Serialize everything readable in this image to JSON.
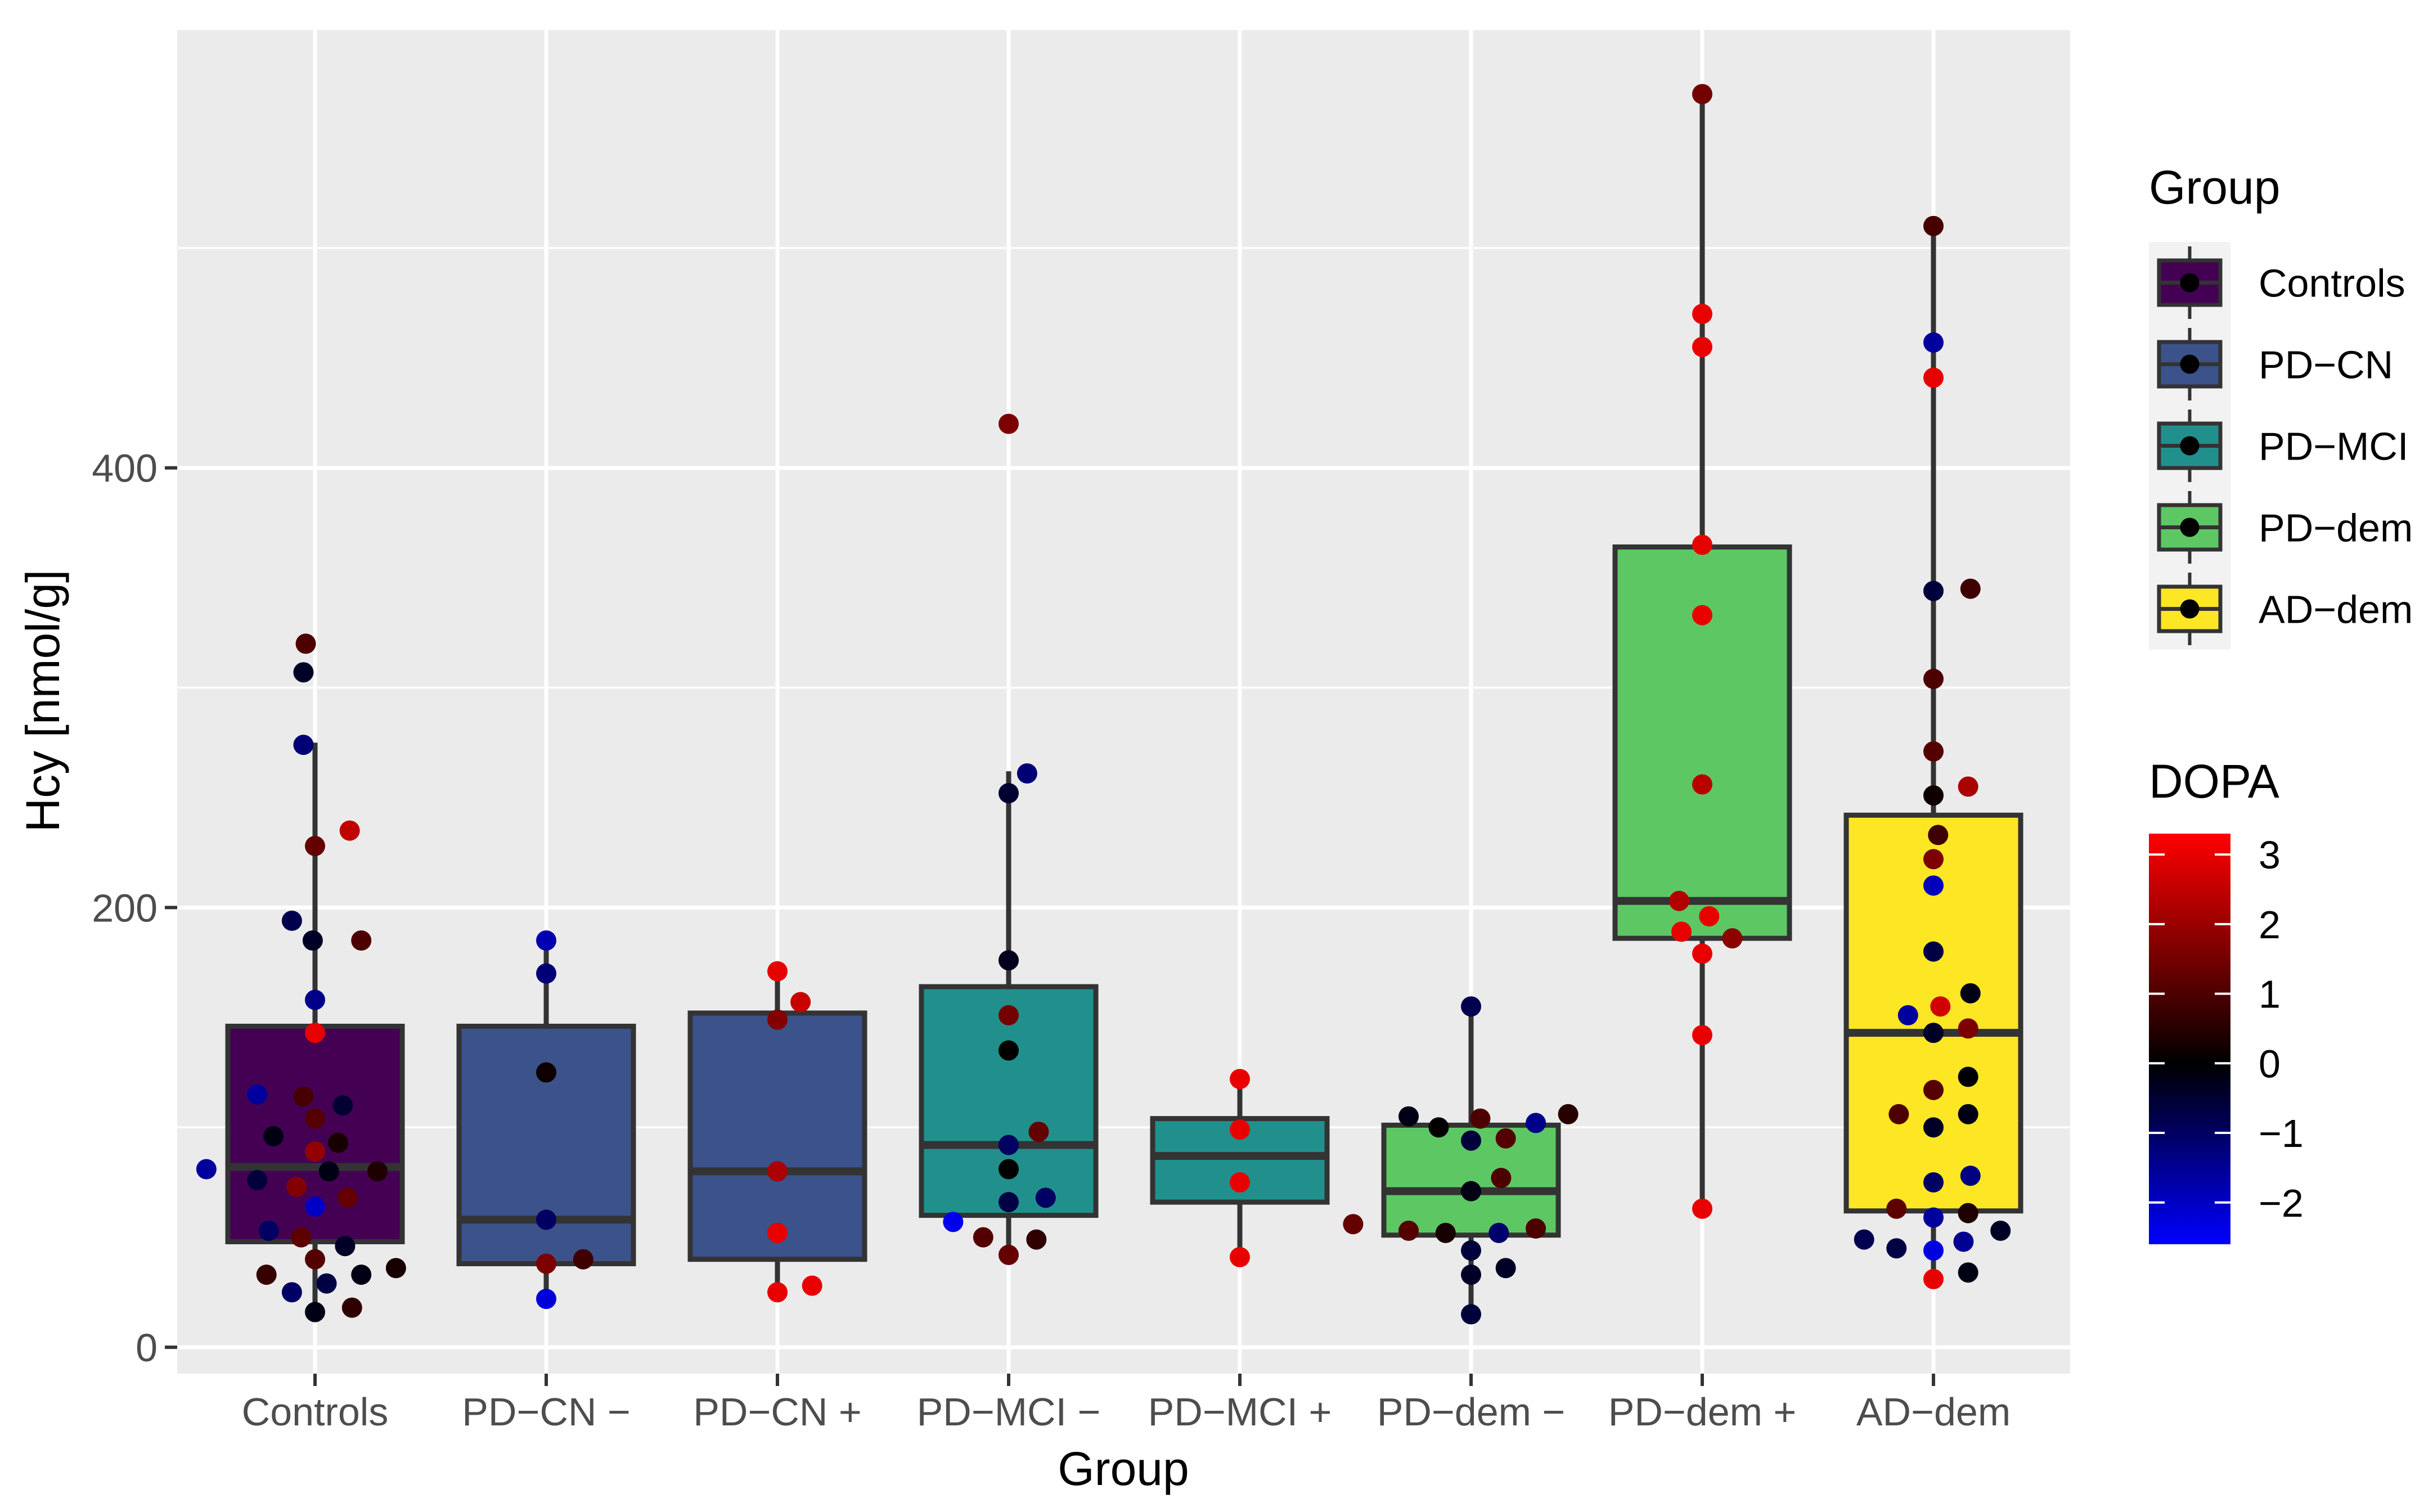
{
  "chart_data": {
    "type": "boxplot",
    "xlabel": "Group",
    "ylabel": "Hcy [nmol/g]",
    "ylim": [
      -12,
      600
    ],
    "yticks": [
      0,
      200,
      400
    ],
    "grid": true,
    "categories": [
      "Controls",
      "PD−CN −",
      "PD−CN +",
      "PD−MCI −",
      "PD−MCI +",
      "PD−dem −",
      "PD−dem +",
      "AD−dem"
    ],
    "boxes": [
      {
        "category": "Controls",
        "group": "Controls",
        "whisker_low": 15,
        "q1": 48,
        "median": 82,
        "q3": 146,
        "whisker_high": 275
      },
      {
        "category": "PD−CN −",
        "group": "PD−CN",
        "whisker_low": 22,
        "q1": 38,
        "median": 58,
        "q3": 146,
        "whisker_high": 185
      },
      {
        "category": "PD−CN +",
        "group": "PD−CN",
        "whisker_low": 24,
        "q1": 40,
        "median": 80,
        "q3": 152,
        "whisker_high": 170
      },
      {
        "category": "PD−MCI −",
        "group": "PD−MCI",
        "whisker_low": 42,
        "q1": 60,
        "median": 92,
        "q3": 164,
        "whisker_high": 262
      },
      {
        "category": "PD−MCI +",
        "group": "PD−MCI",
        "whisker_low": 40,
        "q1": 66,
        "median": 87,
        "q3": 104,
        "whisker_high": 122
      },
      {
        "category": "PD−dem −",
        "group": "PD−dem",
        "whisker_low": 14,
        "q1": 51,
        "median": 71,
        "q3": 101,
        "whisker_high": 155
      },
      {
        "category": "PD−dem +",
        "group": "PD−dem",
        "whisker_low": 62,
        "q1": 186,
        "median": 203,
        "q3": 364,
        "whisker_high": 570
      },
      {
        "category": "AD−dem",
        "group": "AD−dem",
        "whisker_low": 30,
        "q1": 62,
        "median": 143,
        "q3": 242,
        "whisker_high": 510
      }
    ],
    "points": [
      {
        "category": "Controls",
        "dx": -0.04,
        "hcy": 320,
        "dopa": 1.0
      },
      {
        "category": "Controls",
        "dx": -0.05,
        "hcy": 307,
        "dopa": -0.4
      },
      {
        "category": "Controls",
        "dx": -0.05,
        "hcy": 274,
        "dopa": -1.2
      },
      {
        "category": "Controls",
        "dx": 0.15,
        "hcy": 235,
        "dopa": 2.5
      },
      {
        "category": "Controls",
        "dx": 0.0,
        "hcy": 228,
        "dopa": 1.3
      },
      {
        "category": "Controls",
        "dx": -0.1,
        "hcy": 194,
        "dopa": -0.8
      },
      {
        "category": "Controls",
        "dx": -0.01,
        "hcy": 185,
        "dopa": -0.4
      },
      {
        "category": "Controls",
        "dx": 0.2,
        "hcy": 185,
        "dopa": 1.0
      },
      {
        "category": "Controls",
        "dx": 0.0,
        "hcy": 158,
        "dopa": -1.4
      },
      {
        "category": "Controls",
        "dx": 0.0,
        "hcy": 143,
        "dopa": 3.0
      },
      {
        "category": "Controls",
        "dx": -0.25,
        "hcy": 115,
        "dopa": -1.6
      },
      {
        "category": "Controls",
        "dx": -0.05,
        "hcy": 114,
        "dopa": 0.9
      },
      {
        "category": "Controls",
        "dx": 0.12,
        "hcy": 110,
        "dopa": -0.5
      },
      {
        "category": "Controls",
        "dx": 0.0,
        "hcy": 104,
        "dopa": 1.1
      },
      {
        "category": "Controls",
        "dx": -0.18,
        "hcy": 96,
        "dopa": -0.2
      },
      {
        "category": "Controls",
        "dx": 0.1,
        "hcy": 93,
        "dopa": 0.3
      },
      {
        "category": "Controls",
        "dx": 0.0,
        "hcy": 89,
        "dopa": 1.9
      },
      {
        "category": "Controls",
        "dx": -0.47,
        "hcy": 81,
        "dopa": -1.6
      },
      {
        "category": "Controls",
        "dx": 0.06,
        "hcy": 80,
        "dopa": -0.2
      },
      {
        "category": "Controls",
        "dx": 0.27,
        "hcy": 80,
        "dopa": 0.4
      },
      {
        "category": "Controls",
        "dx": -0.25,
        "hcy": 76,
        "dopa": -0.6
      },
      {
        "category": "Controls",
        "dx": -0.08,
        "hcy": 73,
        "dopa": 1.7
      },
      {
        "category": "Controls",
        "dx": 0.14,
        "hcy": 68,
        "dopa": 1.3
      },
      {
        "category": "Controls",
        "dx": 0.0,
        "hcy": 64,
        "dopa": -2.0
      },
      {
        "category": "Controls",
        "dx": -0.2,
        "hcy": 53,
        "dopa": -1.0
      },
      {
        "category": "Controls",
        "dx": -0.06,
        "hcy": 50,
        "dopa": 1.2
      },
      {
        "category": "Controls",
        "dx": 0.13,
        "hcy": 46,
        "dopa": -0.4
      },
      {
        "category": "Controls",
        "dx": 0.0,
        "hcy": 40,
        "dopa": 1.1
      },
      {
        "category": "Controls",
        "dx": 0.35,
        "hcy": 36,
        "dopa": 0.3
      },
      {
        "category": "Controls",
        "dx": -0.21,
        "hcy": 33,
        "dopa": 0.7
      },
      {
        "category": "Controls",
        "dx": 0.2,
        "hcy": 33,
        "dopa": -0.2
      },
      {
        "category": "Controls",
        "dx": 0.05,
        "hcy": 29,
        "dopa": -0.7
      },
      {
        "category": "Controls",
        "dx": -0.1,
        "hcy": 25,
        "dopa": -1.0
      },
      {
        "category": "Controls",
        "dx": 0.16,
        "hcy": 18,
        "dopa": 0.6
      },
      {
        "category": "Controls",
        "dx": 0.0,
        "hcy": 16,
        "dopa": -0.2
      },
      {
        "category": "PD−CN −",
        "dx": 0.0,
        "hcy": 185,
        "dopa": -1.8
      },
      {
        "category": "PD−CN −",
        "dx": 0.0,
        "hcy": 170,
        "dopa": -1.2
      },
      {
        "category": "PD−CN −",
        "dx": 0.0,
        "hcy": 125,
        "dopa": 0.2
      },
      {
        "category": "PD−CN −",
        "dx": 0.0,
        "hcy": 58,
        "dopa": -1.0
      },
      {
        "category": "PD−CN −",
        "dx": 0.0,
        "hcy": 38,
        "dopa": 1.6
      },
      {
        "category": "PD−CN −",
        "dx": 0.16,
        "hcy": 40,
        "dopa": 0.8
      },
      {
        "category": "PD−CN −",
        "dx": 0.0,
        "hcy": 22,
        "dopa": -2.2
      },
      {
        "category": "PD−CN +",
        "dx": 0.0,
        "hcy": 171,
        "dopa": 3.0
      },
      {
        "category": "PD−CN +",
        "dx": 0.1,
        "hcy": 157,
        "dopa": 2.6
      },
      {
        "category": "PD−CN +",
        "dx": 0.0,
        "hcy": 149,
        "dopa": 1.7
      },
      {
        "category": "PD−CN +",
        "dx": 0.0,
        "hcy": 80,
        "dopa": 2.2
      },
      {
        "category": "PD−CN +",
        "dx": 0.0,
        "hcy": 52,
        "dopa": 3.0
      },
      {
        "category": "PD−CN +",
        "dx": 0.15,
        "hcy": 28,
        "dopa": 3.0
      },
      {
        "category": "PD−CN +",
        "dx": 0.0,
        "hcy": 25,
        "dopa": 3.0
      },
      {
        "category": "PD−MCI −",
        "dx": 0.0,
        "hcy": 420,
        "dopa": 1.6
      },
      {
        "category": "PD−MCI −",
        "dx": 0.08,
        "hcy": 261,
        "dopa": -1.2
      },
      {
        "category": "PD−MCI −",
        "dx": 0.0,
        "hcy": 252,
        "dopa": -0.5
      },
      {
        "category": "PD−MCI −",
        "dx": 0.0,
        "hcy": 176,
        "dopa": -0.3
      },
      {
        "category": "PD−MCI −",
        "dx": 0.0,
        "hcy": 151,
        "dopa": 1.5
      },
      {
        "category": "PD−MCI −",
        "dx": 0.0,
        "hcy": 135,
        "dopa": 0.0
      },
      {
        "category": "PD−MCI −",
        "dx": 0.13,
        "hcy": 98,
        "dopa": 1.3
      },
      {
        "category": "PD−MCI −",
        "dx": 0.0,
        "hcy": 92,
        "dopa": -1.0
      },
      {
        "category": "PD−MCI −",
        "dx": 0.0,
        "hcy": 81,
        "dopa": 0.0
      },
      {
        "category": "PD−MCI −",
        "dx": 0.0,
        "hcy": 66,
        "dopa": -0.7
      },
      {
        "category": "PD−MCI −",
        "dx": 0.16,
        "hcy": 68,
        "dopa": -1.0
      },
      {
        "category": "PD−MCI −",
        "dx": -0.24,
        "hcy": 57,
        "dopa": -2.4
      },
      {
        "category": "PD−MCI −",
        "dx": -0.11,
        "hcy": 50,
        "dopa": 1.1
      },
      {
        "category": "PD−MCI −",
        "dx": 0.12,
        "hcy": 49,
        "dopa": 0.6
      },
      {
        "category": "PD−MCI −",
        "dx": 0.0,
        "hcy": 42,
        "dopa": 1.3
      },
      {
        "category": "PD−MCI +",
        "dx": 0.0,
        "hcy": 122,
        "dopa": 3.0
      },
      {
        "category": "PD−MCI +",
        "dx": 0.0,
        "hcy": 99,
        "dopa": 3.0
      },
      {
        "category": "PD−MCI +",
        "dx": 0.0,
        "hcy": 75,
        "dopa": 3.0
      },
      {
        "category": "PD−MCI +",
        "dx": 0.0,
        "hcy": 41,
        "dopa": 3.0
      },
      {
        "category": "PD−dem −",
        "dx": 0.0,
        "hcy": 155,
        "dopa": -0.8
      },
      {
        "category": "PD−dem −",
        "dx": 0.42,
        "hcy": 106,
        "dopa": 0.5
      },
      {
        "category": "PD−dem −",
        "dx": -0.27,
        "hcy": 105,
        "dopa": -0.2
      },
      {
        "category": "PD−dem −",
        "dx": 0.04,
        "hcy": 104,
        "dopa": 1.0
      },
      {
        "category": "PD−dem −",
        "dx": 0.28,
        "hcy": 102,
        "dopa": -1.4
      },
      {
        "category": "PD−dem −",
        "dx": -0.14,
        "hcy": 100,
        "dopa": 0.0
      },
      {
        "category": "PD−dem −",
        "dx": 0.15,
        "hcy": 95,
        "dopa": 1.1
      },
      {
        "category": "PD−dem −",
        "dx": 0.0,
        "hcy": 94,
        "dopa": -0.6
      },
      {
        "category": "PD−dem −",
        "dx": 0.13,
        "hcy": 77,
        "dopa": 1.0
      },
      {
        "category": "PD−dem −",
        "dx": 0.0,
        "hcy": 71,
        "dopa": -0.2
      },
      {
        "category": "PD−dem −",
        "dx": -0.51,
        "hcy": 56,
        "dopa": 1.3
      },
      {
        "category": "PD−dem −",
        "dx": -0.27,
        "hcy": 53,
        "dopa": 1.1
      },
      {
        "category": "PD−dem −",
        "dx": -0.11,
        "hcy": 52,
        "dopa": 0.3
      },
      {
        "category": "PD−dem −",
        "dx": 0.12,
        "hcy": 52,
        "dopa": -1.1
      },
      {
        "category": "PD−dem −",
        "dx": 0.28,
        "hcy": 54,
        "dopa": 1.0
      },
      {
        "category": "PD−dem −",
        "dx": 0.0,
        "hcy": 44,
        "dopa": -0.6
      },
      {
        "category": "PD−dem −",
        "dx": 0.15,
        "hcy": 36,
        "dopa": -0.4
      },
      {
        "category": "PD−dem −",
        "dx": 0.0,
        "hcy": 33,
        "dopa": -0.4
      },
      {
        "category": "PD−dem −",
        "dx": 0.0,
        "hcy": 15,
        "dopa": -0.6
      },
      {
        "category": "PD−dem +",
        "dx": 0.0,
        "hcy": 570,
        "dopa": 1.5
      },
      {
        "category": "PD−dem +",
        "dx": 0.0,
        "hcy": 470,
        "dopa": 3.0
      },
      {
        "category": "PD−dem +",
        "dx": 0.0,
        "hcy": 455,
        "dopa": 3.0
      },
      {
        "category": "PD−dem +",
        "dx": 0.0,
        "hcy": 365,
        "dopa": 3.0
      },
      {
        "category": "PD−dem +",
        "dx": 0.0,
        "hcy": 333,
        "dopa": 3.0
      },
      {
        "category": "PD−dem +",
        "dx": 0.0,
        "hcy": 256,
        "dopa": 2.4
      },
      {
        "category": "PD−dem +",
        "dx": -0.1,
        "hcy": 203,
        "dopa": 2.3
      },
      {
        "category": "PD−dem +",
        "dx": 0.03,
        "hcy": 196,
        "dopa": 3.0
      },
      {
        "category": "PD−dem +",
        "dx": -0.09,
        "hcy": 189,
        "dopa": 3.0
      },
      {
        "category": "PD−dem +",
        "dx": 0.13,
        "hcy": 186,
        "dopa": 1.8
      },
      {
        "category": "PD−dem +",
        "dx": 0.0,
        "hcy": 179,
        "dopa": 3.0
      },
      {
        "category": "PD−dem +",
        "dx": 0.0,
        "hcy": 142,
        "dopa": 3.0
      },
      {
        "category": "PD−dem +",
        "dx": 0.0,
        "hcy": 63,
        "dopa": 3.0
      },
      {
        "category": "AD−dem",
        "dx": 0.0,
        "hcy": 510,
        "dopa": 0.9
      },
      {
        "category": "AD−dem",
        "dx": 0.0,
        "hcy": 457,
        "dopa": -1.6
      },
      {
        "category": "AD−dem",
        "dx": 0.0,
        "hcy": 441,
        "dopa": 3.0
      },
      {
        "category": "AD−dem",
        "dx": 0.16,
        "hcy": 345,
        "dopa": 0.8
      },
      {
        "category": "AD−dem",
        "dx": 0.0,
        "hcy": 344,
        "dopa": -0.6
      },
      {
        "category": "AD−dem",
        "dx": 0.0,
        "hcy": 304,
        "dopa": 1.0
      },
      {
        "category": "AD−dem",
        "dx": 0.0,
        "hcy": 271,
        "dopa": 1.1
      },
      {
        "category": "AD−dem",
        "dx": 0.15,
        "hcy": 255,
        "dopa": 2.2
      },
      {
        "category": "AD−dem",
        "dx": 0.0,
        "hcy": 251,
        "dopa": 0.2
      },
      {
        "category": "AD−dem",
        "dx": 0.02,
        "hcy": 233,
        "dopa": 0.8
      },
      {
        "category": "AD−dem",
        "dx": 0.0,
        "hcy": 222,
        "dopa": 1.6
      },
      {
        "category": "AD−dem",
        "dx": 0.0,
        "hcy": 210,
        "dopa": -1.9
      },
      {
        "category": "AD−dem",
        "dx": 0.0,
        "hcy": 180,
        "dopa": -0.7
      },
      {
        "category": "AD−dem",
        "dx": 0.16,
        "hcy": 161,
        "dopa": -0.2
      },
      {
        "category": "AD−dem",
        "dx": 0.03,
        "hcy": 155,
        "dopa": 2.7
      },
      {
        "category": "AD−dem",
        "dx": -0.11,
        "hcy": 151,
        "dopa": -1.6
      },
      {
        "category": "AD−dem",
        "dx": 0.15,
        "hcy": 145,
        "dopa": 1.6
      },
      {
        "category": "AD−dem",
        "dx": 0.0,
        "hcy": 143,
        "dopa": -0.4
      },
      {
        "category": "AD−dem",
        "dx": 0.15,
        "hcy": 123,
        "dopa": 0.0
      },
      {
        "category": "AD−dem",
        "dx": 0.0,
        "hcy": 117,
        "dopa": 1.1
      },
      {
        "category": "AD−dem",
        "dx": -0.15,
        "hcy": 106,
        "dopa": 1.0
      },
      {
        "category": "AD−dem",
        "dx": 0.15,
        "hcy": 106,
        "dopa": -0.2
      },
      {
        "category": "AD−dem",
        "dx": 0.0,
        "hcy": 100,
        "dopa": -0.4
      },
      {
        "category": "AD−dem",
        "dx": 0.16,
        "hcy": 78,
        "dopa": -1.3
      },
      {
        "category": "AD−dem",
        "dx": 0.0,
        "hcy": 75,
        "dopa": -1.0
      },
      {
        "category": "AD−dem",
        "dx": -0.16,
        "hcy": 63,
        "dopa": 1.2
      },
      {
        "category": "AD−dem",
        "dx": 0.15,
        "hcy": 61,
        "dopa": 0.4
      },
      {
        "category": "AD−dem",
        "dx": 0.0,
        "hcy": 59,
        "dopa": -1.6
      },
      {
        "category": "AD−dem",
        "dx": 0.29,
        "hcy": 53,
        "dopa": -0.4
      },
      {
        "category": "AD−dem",
        "dx": -0.3,
        "hcy": 49,
        "dopa": -0.8
      },
      {
        "category": "AD−dem",
        "dx": 0.13,
        "hcy": 48,
        "dopa": -1.5
      },
      {
        "category": "AD−dem",
        "dx": -0.16,
        "hcy": 45,
        "dopa": -0.7
      },
      {
        "category": "AD−dem",
        "dx": 0.0,
        "hcy": 44,
        "dopa": -2.3
      },
      {
        "category": "AD−dem",
        "dx": 0.15,
        "hcy": 34,
        "dopa": -0.2
      },
      {
        "category": "AD−dem",
        "dx": 0.0,
        "hcy": 31,
        "dopa": 3.0
      }
    ],
    "fill_legend": {
      "title": "Group",
      "entries": [
        {
          "label": "Controls",
          "color": "#440154"
        },
        {
          "label": "PD−CN",
          "color": "#3B528B"
        },
        {
          "label": "PD−MCI",
          "color": "#21908C"
        },
        {
          "label": "PD−dem",
          "color": "#5DC863"
        },
        {
          "label": "AD−dem",
          "color": "#FDE725"
        }
      ]
    },
    "color_legend": {
      "title": "DOPA",
      "min": -2.6,
      "max": 3.3,
      "ticks": [
        3,
        2,
        1,
        0,
        -1,
        -2
      ],
      "tick_labels": [
        "3",
        "2",
        "1",
        "0",
        "−1",
        "−2"
      ],
      "stops": [
        {
          "value": -2.6,
          "color": "#0000FF"
        },
        {
          "value": 0,
          "color": "#000000"
        },
        {
          "value": 3.3,
          "color": "#FF0000"
        }
      ]
    },
    "colors": {
      "panel_background": "#EBEBEB",
      "grid": "#FFFFFF",
      "box_outline": "#333333",
      "axis_text": "#4D4D4D"
    }
  }
}
